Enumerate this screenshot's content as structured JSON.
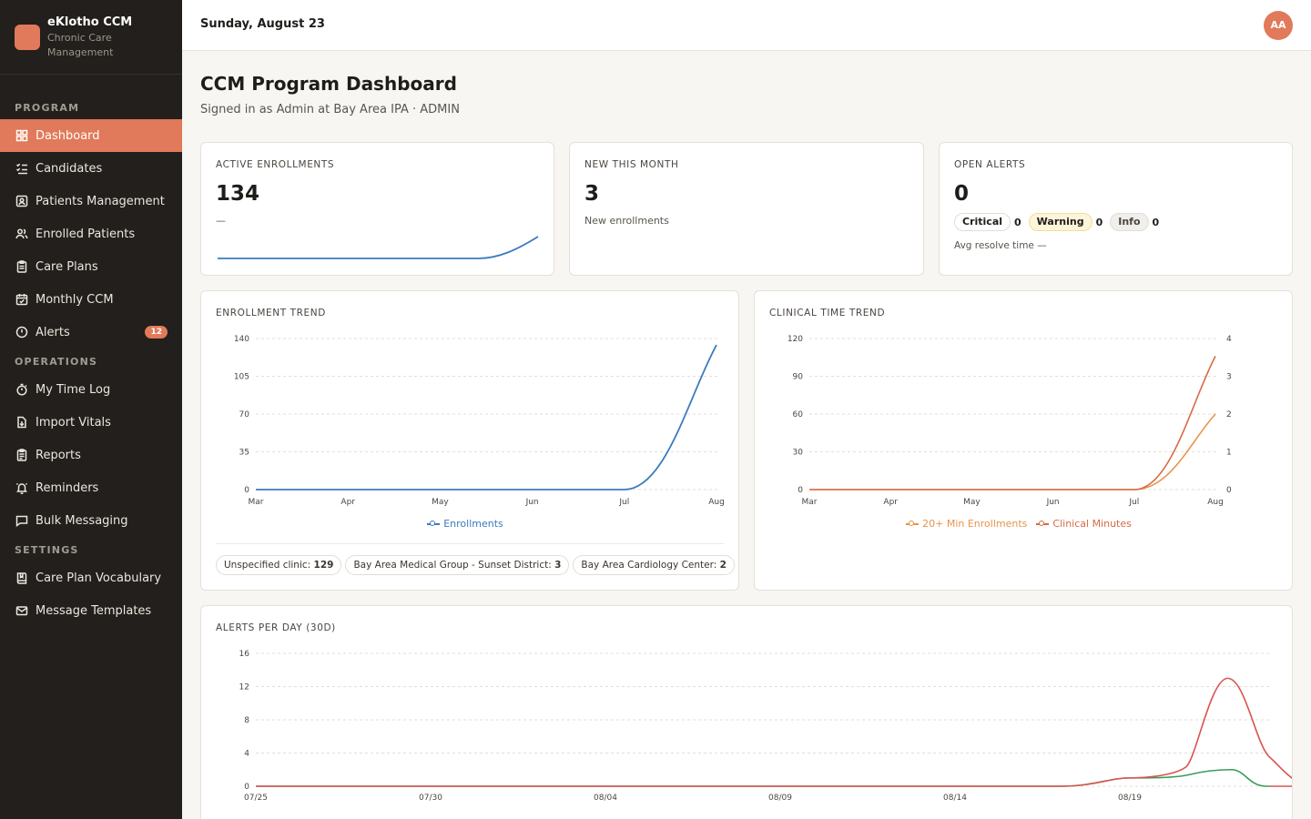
{
  "brand": {
    "title": "eKlotho CCM",
    "subtitle": "Chronic Care Management"
  },
  "sidebar": {
    "sections": [
      {
        "label": "PROGRAM",
        "items": [
          {
            "label": "Dashboard",
            "icon": "grid-icon",
            "active": true
          },
          {
            "label": "Candidates",
            "icon": "list-check-icon"
          },
          {
            "label": "Patients Management",
            "icon": "id-card-icon"
          },
          {
            "label": "Enrolled Patients",
            "icon": "users-icon"
          },
          {
            "label": "Care Plans",
            "icon": "clipboard-icon"
          },
          {
            "label": "Monthly CCM",
            "icon": "calendar-check-icon"
          },
          {
            "label": "Alerts",
            "icon": "alert-circle-icon",
            "badge": "12"
          }
        ]
      },
      {
        "label": "OPERATIONS",
        "items": [
          {
            "label": "My Time Log",
            "icon": "stopwatch-icon"
          },
          {
            "label": "Import Vitals",
            "icon": "file-import-icon"
          },
          {
            "label": "Reports",
            "icon": "clipboard-list-icon"
          },
          {
            "label": "Reminders",
            "icon": "bell-ring-icon"
          },
          {
            "label": "Bulk Messaging",
            "icon": "message-square-icon"
          }
        ]
      },
      {
        "label": "SETTINGS",
        "items": [
          {
            "label": "Care Plan Vocabulary",
            "icon": "book-icon"
          },
          {
            "label": "Message Templates",
            "icon": "mail-icon"
          }
        ]
      }
    ]
  },
  "header": {
    "date": "Sunday, August 23",
    "avatar_initials": "AA"
  },
  "page": {
    "title": "CCM Program Dashboard",
    "subtitle": "Signed in as Admin at Bay Area IPA · ADMIN"
  },
  "kpis": {
    "active_enrollments": {
      "label": "ACTIVE ENROLLMENTS",
      "value": "134",
      "sub": "—"
    },
    "new_this_month": {
      "label": "NEW THIS MONTH",
      "value": "3",
      "sub": "New enrollments"
    },
    "open_alerts": {
      "label": "OPEN ALERTS",
      "value": "0",
      "critical_label": "Critical",
      "critical_count": "0",
      "warning_label": "Warning",
      "warning_count": "0",
      "info_label": "Info",
      "info_count": "0",
      "resolve_text": "Avg resolve time —"
    }
  },
  "enrollment_trend": {
    "label": "ENROLLMENT TREND",
    "legend": "Enrollments",
    "clinics": [
      {
        "name": "Unspecified clinic:",
        "count": "129"
      },
      {
        "name": "Bay Area Medical Group - Sunset District:",
        "count": "3"
      },
      {
        "name": "Bay Area Cardiology Center:",
        "count": "2"
      }
    ]
  },
  "clinical_time_trend": {
    "label": "CLINICAL TIME TREND",
    "legend_a": "20+ Min Enrollments",
    "legend_b": "Clinical Minutes"
  },
  "alerts_per_day": {
    "label": "ALERTS PER DAY (30D)"
  },
  "colors": {
    "accent": "#e07a5a",
    "sidebar_bg": "#221f1c",
    "blue": "#3a7bbf",
    "orange_light": "#e8934a",
    "orange_dark": "#d96a45",
    "red": "#d9534f",
    "green": "#3a9a5c"
  },
  "chart_data": [
    {
      "type": "line",
      "title": "ENROLLMENT TREND",
      "categories": [
        "Mar",
        "Apr",
        "May",
        "Jun",
        "Jul",
        "Aug"
      ],
      "series": [
        {
          "name": "Enrollments",
          "values": [
            0,
            0,
            0,
            0,
            0,
            134
          ]
        }
      ],
      "yticks": [
        "0",
        "35",
        "70",
        "105",
        "140"
      ],
      "ylim": [
        0,
        140
      ],
      "grid": true,
      "legend": "bottom"
    },
    {
      "type": "line",
      "title": "CLINICAL TIME TREND",
      "categories": [
        "Mar",
        "Apr",
        "May",
        "Jun",
        "Jul",
        "Aug"
      ],
      "series": [
        {
          "name": "20+ Min Enrollments",
          "values": [
            0,
            0,
            0,
            0,
            0,
            2
          ],
          "axis": "right"
        },
        {
          "name": "Clinical Minutes",
          "values": [
            0,
            0,
            0,
            0,
            0,
            106
          ],
          "axis": "left"
        }
      ],
      "yticks_left": [
        "0",
        "30",
        "60",
        "90",
        "120"
      ],
      "yticks_right": [
        "0",
        "1",
        "2",
        "3",
        "4"
      ],
      "ylim_left": [
        0,
        120
      ],
      "ylim_right": [
        0,
        4
      ],
      "grid": true,
      "legend": "bottom"
    },
    {
      "type": "line",
      "title": "ALERTS PER DAY (30D)",
      "x_ticks": [
        "07/25",
        "07/30",
        "08/04",
        "08/09",
        "08/14",
        "08/19"
      ],
      "yticks": [
        "0",
        "4",
        "8",
        "12",
        "16"
      ],
      "ylim": [
        0,
        16
      ],
      "grid": true
    }
  ]
}
